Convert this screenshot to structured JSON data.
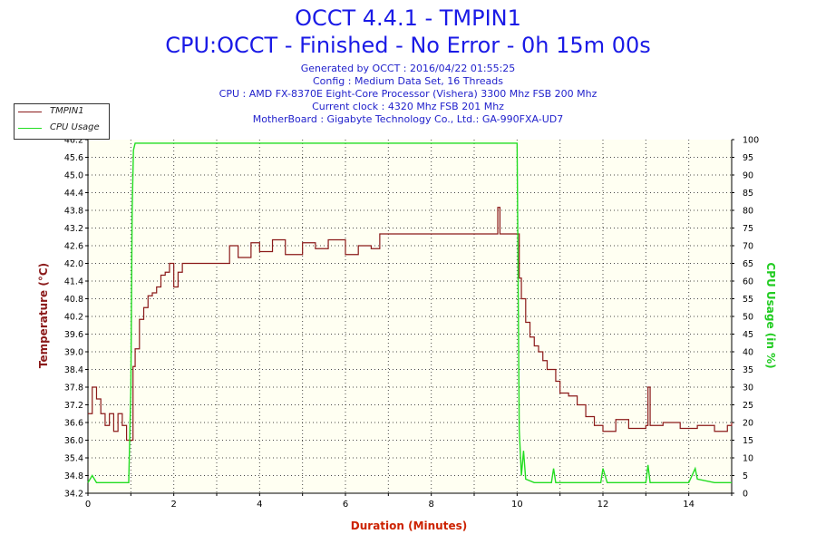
{
  "header": {
    "title": "OCCT 4.4.1 - TMPIN1",
    "subtitle": "CPU:OCCT - Finished - No Error - 0h 15m 00s",
    "info": [
      "Generated by OCCT : 2016/04/22 01:55:25",
      "Config : Medium Data Set, 16 Threads",
      "CPU : AMD FX-8370E Eight-Core Processor (Vishera) 3300 Mhz FSB 200 Mhz",
      "Current clock : 4320 Mhz FSB 201 Mhz",
      "MotherBoard : Gigabyte Technology Co., Ltd.: GA-990FXA-UD7"
    ]
  },
  "colors": {
    "temperature": "#8b1a1a",
    "cpu_usage": "#22dd22",
    "plot_bg": "#fffff2",
    "axis_left_label": "#8b1a1a",
    "axis_right_label": "#22cc22",
    "axis_bottom_label": "#cc2200"
  },
  "chart_data": {
    "type": "line",
    "xlabel": "Duration (Minutes)",
    "ylabel_left": "Temperature (°C)",
    "ylabel_right": "CPU Usage (in %)",
    "xlim": [
      0,
      15
    ],
    "ylim_left": [
      34.2,
      46.2
    ],
    "ylim_right": [
      0,
      100
    ],
    "x_ticks": [
      0,
      2,
      4,
      6,
      8,
      10,
      12,
      14
    ],
    "y_left_ticks": [
      "34.2",
      "34.8",
      "35.4",
      "36.0",
      "36.6",
      "37.2",
      "37.8",
      "38.4",
      "39.0",
      "39.6",
      "40.2",
      "40.8",
      "41.4",
      "42.0",
      "42.6",
      "43.2",
      "43.8",
      "44.4",
      "45.0",
      "45.6",
      "46.2"
    ],
    "y_right_ticks": [
      0,
      5,
      10,
      15,
      20,
      25,
      30,
      35,
      40,
      45,
      50,
      55,
      60,
      65,
      70,
      75,
      80,
      85,
      90,
      95,
      100
    ],
    "grid": true,
    "legend_position": "top-left",
    "series": [
      {
        "name": "TMPIN1",
        "x": [
          0,
          0.1,
          0.2,
          0.3,
          0.4,
          0.5,
          0.6,
          0.7,
          0.8,
          0.9,
          1.0,
          1.05,
          1.1,
          1.2,
          1.3,
          1.4,
          1.5,
          1.6,
          1.7,
          1.8,
          1.9,
          2.0,
          2.1,
          2.2,
          2.3,
          2.4,
          2.6,
          2.8,
          3.0,
          3.2,
          3.3,
          3.5,
          3.8,
          4.0,
          4.3,
          4.6,
          5.0,
          5.3,
          5.6,
          6.0,
          6.3,
          6.6,
          6.8,
          7.0,
          7.5,
          8.0,
          8.5,
          9.0,
          9.3,
          9.5,
          9.55,
          9.6,
          9.8,
          10.0,
          10.05,
          10.1,
          10.2,
          10.3,
          10.4,
          10.5,
          10.6,
          10.7,
          10.8,
          10.9,
          11.0,
          11.2,
          11.4,
          11.6,
          11.8,
          12.0,
          12.3,
          12.6,
          13.0,
          13.05,
          13.1,
          13.4,
          13.8,
          14.2,
          14.6,
          14.9,
          15.0
        ],
        "y": [
          36.9,
          37.8,
          37.4,
          36.9,
          36.5,
          36.9,
          36.3,
          36.9,
          36.5,
          36.0,
          36.0,
          38.5,
          39.1,
          40.1,
          40.5,
          40.9,
          41.0,
          41.2,
          41.6,
          41.7,
          42.0,
          41.2,
          41.7,
          42.0,
          42.0,
          42.0,
          42.0,
          42.0,
          42.0,
          42.0,
          42.6,
          42.2,
          42.7,
          42.4,
          42.8,
          42.3,
          42.7,
          42.5,
          42.8,
          42.3,
          42.6,
          42.5,
          43.0,
          43.0,
          43.0,
          43.0,
          43.0,
          43.0,
          43.0,
          43.0,
          43.9,
          43.0,
          43.0,
          43.0,
          41.5,
          40.8,
          40.0,
          39.5,
          39.2,
          39.0,
          38.7,
          38.4,
          38.4,
          38.0,
          37.6,
          37.5,
          37.2,
          36.8,
          36.5,
          36.3,
          36.7,
          36.4,
          36.5,
          37.8,
          36.5,
          36.6,
          36.4,
          36.5,
          36.3,
          36.5,
          36.6
        ]
      },
      {
        "name": "CPU Usage",
        "x": [
          0,
          0.1,
          0.2,
          0.5,
          0.8,
          0.95,
          1.0,
          1.03,
          1.06,
          1.1,
          1.5,
          2.0,
          3.0,
          4.0,
          5.0,
          6.0,
          6.5,
          7.0,
          8.0,
          9.0,
          9.9,
          10.0,
          10.05,
          10.1,
          10.15,
          10.2,
          10.4,
          10.8,
          10.85,
          10.9,
          11.5,
          11.95,
          12.0,
          12.1,
          12.5,
          13.0,
          13.05,
          13.1,
          13.5,
          14.0,
          14.15,
          14.2,
          14.6,
          15.0
        ],
        "y": [
          3,
          5,
          3,
          3,
          3,
          3,
          30,
          80,
          97,
          99,
          99,
          99,
          99,
          99,
          99,
          99,
          99,
          99,
          99,
          99,
          99,
          99,
          18,
          5,
          12,
          4,
          3,
          3,
          7,
          3,
          3,
          3,
          7,
          3,
          3,
          3,
          8,
          3,
          3,
          3,
          7,
          4,
          3,
          3
        ]
      }
    ]
  }
}
